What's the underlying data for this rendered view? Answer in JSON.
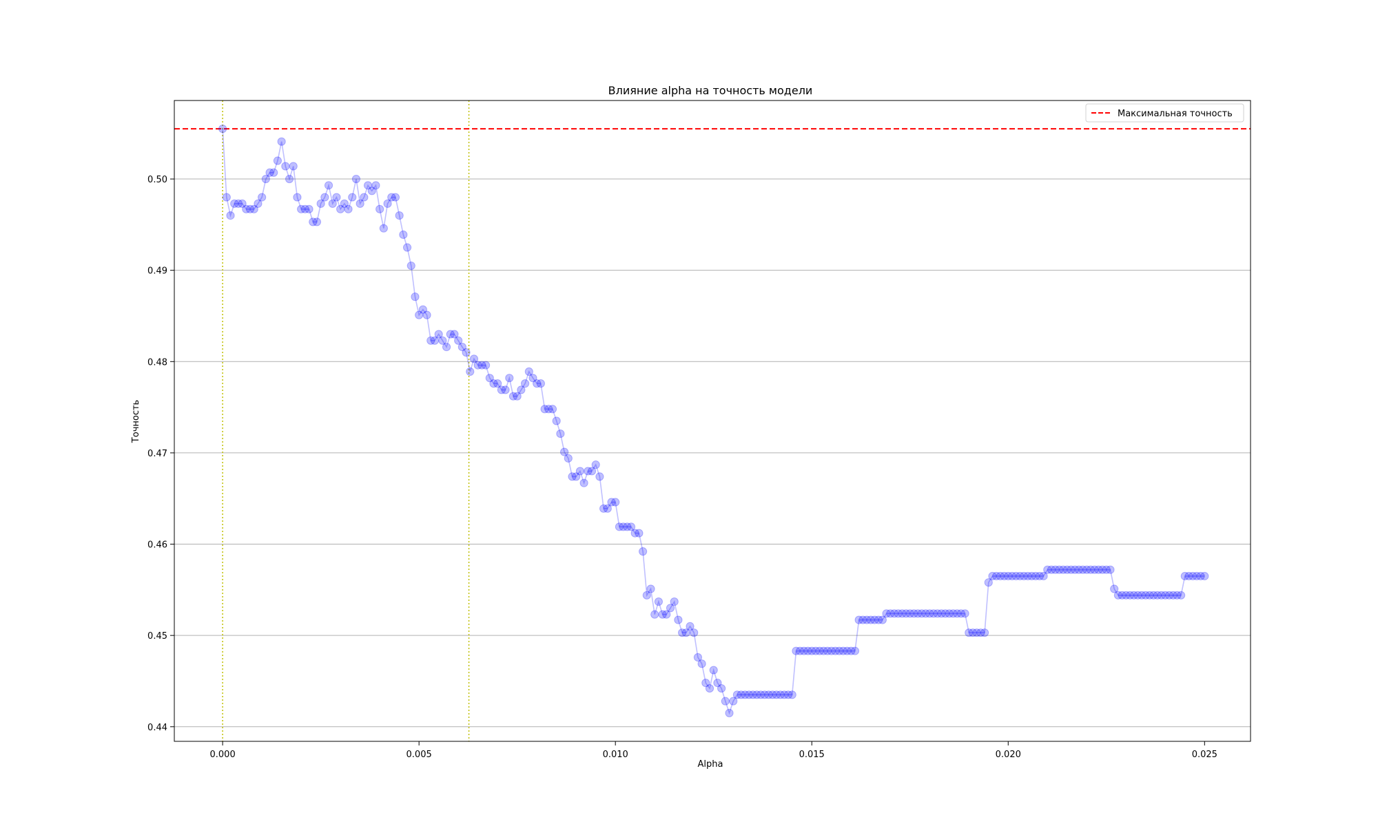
{
  "chart_data": {
    "type": "line",
    "title": "Влияние alpha на точность модели",
    "xlabel": "Alpha",
    "ylabel": "Точность",
    "xlim": [
      -0.00123,
      0.02617
    ],
    "ylim": [
      0.4384,
      0.5086
    ],
    "xticks": [
      0.0,
      0.005,
      0.01,
      0.015,
      0.02,
      0.025
    ],
    "xtick_labels": [
      "0.000",
      "0.005",
      "0.010",
      "0.015",
      "0.020",
      "0.025"
    ],
    "yticks": [
      0.44,
      0.45,
      0.46,
      0.47,
      0.48,
      0.49,
      0.5
    ],
    "ytick_labels": [
      "0.44",
      "0.45",
      "0.46",
      "0.47",
      "0.48",
      "0.49",
      "0.50"
    ],
    "grid": "horizontal",
    "legend_position": "top-right",
    "series": [
      {
        "color": "#0000ff",
        "style": "line-with-circle-markers",
        "alpha": 0.25,
        "x_start": 0.0,
        "x_step": 0.0001,
        "y": [
          0.5055,
          0.498,
          0.496,
          0.4973,
          0.4973,
          0.4973,
          0.4967,
          0.4967,
          0.4967,
          0.4973,
          0.498,
          0.5,
          0.5007,
          0.5007,
          0.502,
          0.5041,
          0.5014,
          0.5,
          0.5014,
          0.498,
          0.4967,
          0.4967,
          0.4967,
          0.4953,
          0.4953,
          0.4973,
          0.498,
          0.4993,
          0.4973,
          0.498,
          0.4967,
          0.4973,
          0.4967,
          0.498,
          0.5,
          0.4973,
          0.498,
          0.4993,
          0.4987,
          0.4993,
          0.4967,
          0.4946,
          0.4973,
          0.498,
          0.498,
          0.496,
          0.4939,
          0.4925,
          0.4905,
          0.4871,
          0.4851,
          0.4857,
          0.4851,
          0.4823,
          0.4823,
          0.483,
          0.4823,
          0.4816,
          0.483,
          0.483,
          0.4823,
          0.4816,
          0.481,
          0.4789,
          0.4803,
          0.4796,
          0.4796,
          0.4796,
          0.4782,
          0.4776,
          0.4776,
          0.4769,
          0.4769,
          0.4782,
          0.4762,
          0.4762,
          0.4769,
          0.4776,
          0.4789,
          0.4782,
          0.4776,
          0.4776,
          0.4748,
          0.4748,
          0.4748,
          0.4735,
          0.4721,
          0.4701,
          0.4694,
          0.4674,
          0.4674,
          0.468,
          0.4667,
          0.468,
          0.468,
          0.4687,
          0.4674,
          0.4639,
          0.4639,
          0.4646,
          0.4646,
          0.4619,
          0.4619,
          0.4619,
          0.4619,
          0.4612,
          0.4612,
          0.4592,
          0.4544,
          0.4551,
          0.4523,
          0.4537,
          0.4523,
          0.4523,
          0.453,
          0.4537,
          0.4517,
          0.4503,
          0.4503,
          0.451,
          0.4503,
          0.4476,
          0.4469,
          0.4448,
          0.4442,
          0.4462,
          0.4448,
          0.4442,
          0.4428,
          0.4415,
          0.4428,
          0.4435,
          0.4435,
          0.4435,
          0.4435,
          0.4435,
          0.4435,
          0.4435,
          0.4435,
          0.4435,
          0.4435,
          0.4435,
          0.4435,
          0.4435,
          0.4435,
          0.4435,
          0.4483,
          0.4483,
          0.4483,
          0.4483,
          0.4483,
          0.4483,
          0.4483,
          0.4483,
          0.4483,
          0.4483,
          0.4483,
          0.4483,
          0.4483,
          0.4483,
          0.4483,
          0.4483,
          0.4517,
          0.4517,
          0.4517,
          0.4517,
          0.4517,
          0.4517,
          0.4517,
          0.4524,
          0.4524,
          0.4524,
          0.4524,
          0.4524,
          0.4524,
          0.4524,
          0.4524,
          0.4524,
          0.4524,
          0.4524,
          0.4524,
          0.4524,
          0.4524,
          0.4524,
          0.4524,
          0.4524,
          0.4524,
          0.4524,
          0.4524,
          0.4524,
          0.4503,
          0.4503,
          0.4503,
          0.4503,
          0.4503,
          0.4558,
          0.4565,
          0.4565,
          0.4565,
          0.4565,
          0.4565,
          0.4565,
          0.4565,
          0.4565,
          0.4565,
          0.4565,
          0.4565,
          0.4565,
          0.4565,
          0.4565,
          0.4572,
          0.4572,
          0.4572,
          0.4572,
          0.4572,
          0.4572,
          0.4572,
          0.4572,
          0.4572,
          0.4572,
          0.4572,
          0.4572,
          0.4572,
          0.4572,
          0.4572,
          0.4572,
          0.4572,
          0.4551,
          0.4544,
          0.4544,
          0.4544,
          0.4544,
          0.4544,
          0.4544,
          0.4544,
          0.4544,
          0.4544,
          0.4544,
          0.4544,
          0.4544,
          0.4544,
          0.4544,
          0.4544,
          0.4544,
          0.4544,
          0.4565,
          0.4565,
          0.4565,
          0.4565,
          0.4565,
          0.4565
        ]
      }
    ],
    "hlines": [
      {
        "name": "Максимальная точность",
        "y": 0.5055,
        "color": "#ff0000",
        "style": "dashed"
      }
    ],
    "vlines": [
      {
        "x": 0.0,
        "color": "#bfbf00",
        "style": "dotted"
      },
      {
        "x": 0.00627,
        "color": "#bfbf00",
        "style": "dotted"
      }
    ]
  }
}
